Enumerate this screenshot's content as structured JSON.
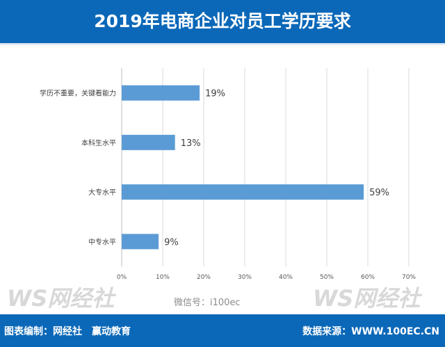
{
  "title": "2019年电商企业对员工学历要求",
  "footer": {
    "compiled_by": "图表编制：网经社　赢动教育",
    "source": "数据来源：WWW.100EC.CN",
    "wechat": "微信号：i100ec"
  },
  "watermark": "WS网经社",
  "colors": {
    "header": "#0b68b8",
    "bar": "#5b9bd5"
  },
  "chart_data": {
    "type": "bar",
    "orientation": "horizontal",
    "categories": [
      "学历不重要，关键看能力",
      "本科生水平",
      "大专水平",
      "中专水平"
    ],
    "values": [
      19,
      13,
      59,
      9
    ],
    "data_labels": [
      "19%",
      "13%",
      "59%",
      "9%"
    ],
    "xlim": [
      0,
      70
    ],
    "xticks": [
      "0%",
      "10%",
      "20%",
      "30%",
      "40%",
      "50%",
      "60%",
      "70%"
    ],
    "grid": true
  }
}
